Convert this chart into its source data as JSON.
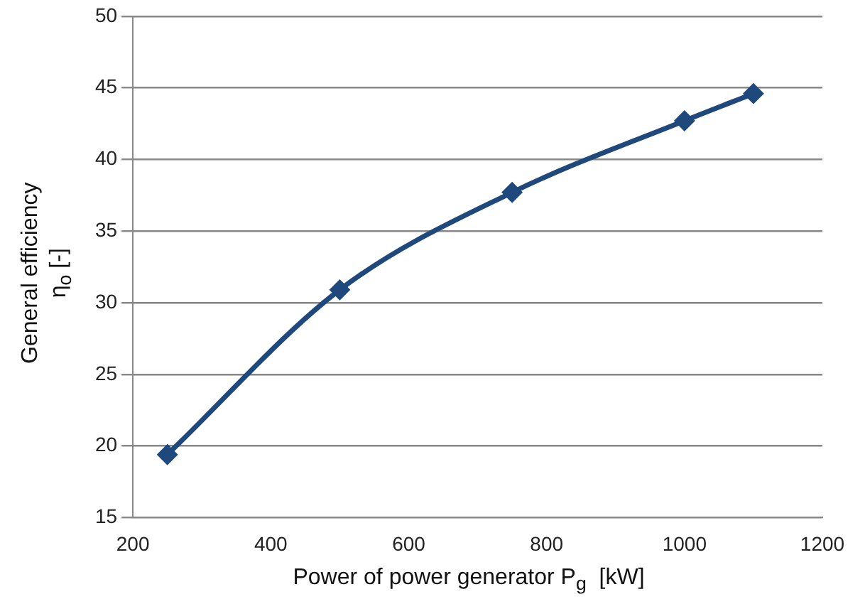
{
  "chart_data": {
    "type": "line",
    "xlabel": "Power of power generator P$_{g}$  [kW]",
    "ylabel": "General efficiency\nη$_{o}$ [-]",
    "x": [
      250,
      500,
      750,
      1000,
      1100
    ],
    "series": [
      {
        "color": "#1f497d",
        "values": [
          19.4,
          30.9,
          37.7,
          42.7,
          44.6
        ]
      }
    ],
    "xlim": [
      200,
      1200
    ],
    "xticks": [
      200,
      400,
      600,
      800,
      1000,
      1200
    ],
    "ylim": [
      15,
      50
    ],
    "yticks": [
      15,
      20,
      25,
      30,
      35,
      40,
      45,
      50
    ],
    "grid": "y",
    "legend": false,
    "marker": "diamond",
    "line_style": "solid"
  }
}
